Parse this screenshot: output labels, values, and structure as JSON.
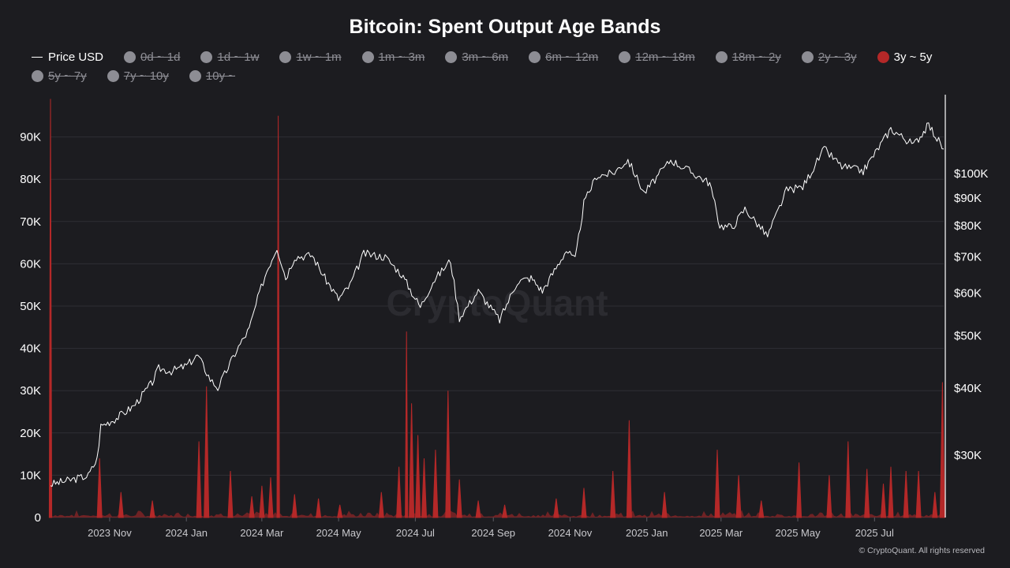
{
  "title": "Bitcoin: Spent Output Age Bands",
  "credit": "© CryptoQuant. All rights reserved",
  "watermark": "CryptoQuant",
  "colors": {
    "background": "#1c1c20",
    "price_line": "#ffffff",
    "series": "#b42828",
    "disabled": "#8d8d94"
  },
  "legend": [
    {
      "label": "Price USD",
      "type": "line",
      "color": "#ffffff",
      "enabled": true
    },
    {
      "label": "0d ~ 1d",
      "type": "dot",
      "color": "#8d8d94",
      "enabled": false
    },
    {
      "label": "1d ~ 1w",
      "type": "dot",
      "color": "#8d8d94",
      "enabled": false
    },
    {
      "label": "1w ~ 1m",
      "type": "dot",
      "color": "#8d8d94",
      "enabled": false
    },
    {
      "label": "1m ~ 3m",
      "type": "dot",
      "color": "#8d8d94",
      "enabled": false
    },
    {
      "label": "3m ~ 6m",
      "type": "dot",
      "color": "#8d8d94",
      "enabled": false
    },
    {
      "label": "6m ~ 12m",
      "type": "dot",
      "color": "#8d8d94",
      "enabled": false
    },
    {
      "label": "12m ~ 18m",
      "type": "dot",
      "color": "#8d8d94",
      "enabled": false
    },
    {
      "label": "18m ~ 2y",
      "type": "dot",
      "color": "#8d8d94",
      "enabled": false
    },
    {
      "label": "2y ~ 3y",
      "type": "dot",
      "color": "#8d8d94",
      "enabled": false
    },
    {
      "label": "3y ~ 5y",
      "type": "dot",
      "color": "#b42828",
      "enabled": true
    },
    {
      "label": "5y ~ 7y",
      "type": "dot",
      "color": "#8d8d94",
      "enabled": false
    },
    {
      "label": "7y ~ 10y",
      "type": "dot",
      "color": "#8d8d94",
      "enabled": false
    },
    {
      "label": "10y ~",
      "type": "dot",
      "color": "#8d8d94",
      "enabled": false
    }
  ],
  "chart_data": {
    "type": "area",
    "x_ticks": [
      "2023 Nov",
      "2024 Jan",
      "2024 Mar",
      "2024 May",
      "2024 Jul",
      "2024 Sep",
      "2024 Nov",
      "2025 Jan",
      "2025 Mar",
      "2025 May",
      "2025 Jul"
    ],
    "x_range": [
      "2023-09-15",
      "2025-08-25"
    ],
    "left_axis": {
      "ticks": [
        "0",
        "10K",
        "20K",
        "30K",
        "40K",
        "50K",
        "60K",
        "70K",
        "80K",
        "90K"
      ],
      "min": 0,
      "max": 100000
    },
    "right_axis": {
      "scale": "log",
      "ticks": [
        {
          "label": "$30K",
          "value": 30000
        },
        {
          "label": "$40K",
          "value": 40000
        },
        {
          "label": "$50K",
          "value": 50000
        },
        {
          "label": "$60K",
          "value": 60000
        },
        {
          "label": "$70K",
          "value": 70000
        },
        {
          "label": "$80K",
          "value": 80000
        },
        {
          "label": "$90K",
          "value": 90000
        },
        {
          "label": "$100K",
          "value": 100000
        }
      ],
      "min": 23000,
      "max": 140000
    },
    "grid": true,
    "series": [
      {
        "name": "Price USD",
        "axis": "right",
        "style": "line",
        "points": [
          [
            "2023-09-15",
            26500
          ],
          [
            "2023-10-01",
            27000
          ],
          [
            "2023-10-15",
            27500
          ],
          [
            "2023-10-22",
            29500
          ],
          [
            "2023-10-25",
            34000
          ],
          [
            "2023-11-05",
            35000
          ],
          [
            "2023-11-20",
            37000
          ],
          [
            "2023-12-05",
            41000
          ],
          [
            "2023-12-10",
            43500
          ],
          [
            "2023-12-20",
            43000
          ],
          [
            "2024-01-01",
            44000
          ],
          [
            "2024-01-10",
            46000
          ],
          [
            "2024-01-20",
            41500
          ],
          [
            "2024-01-26",
            40000
          ],
          [
            "2024-02-10",
            47000
          ],
          [
            "2024-02-20",
            51500
          ],
          [
            "2024-02-28",
            60000
          ],
          [
            "2024-03-05",
            66000
          ],
          [
            "2024-03-13",
            73000
          ],
          [
            "2024-03-20",
            64000
          ],
          [
            "2024-03-27",
            70000
          ],
          [
            "2024-04-10",
            70500
          ],
          [
            "2024-04-20",
            64000
          ],
          [
            "2024-05-01",
            58500
          ],
          [
            "2024-05-10",
            62000
          ],
          [
            "2024-05-21",
            71000
          ],
          [
            "2024-06-07",
            70000
          ],
          [
            "2024-06-20",
            65000
          ],
          [
            "2024-07-05",
            56500
          ],
          [
            "2024-07-15",
            63000
          ],
          [
            "2024-07-29",
            69000
          ],
          [
            "2024-08-05",
            54000
          ],
          [
            "2024-08-20",
            60500
          ],
          [
            "2024-09-06",
            53500
          ],
          [
            "2024-09-20",
            63000
          ],
          [
            "2024-10-01",
            64000
          ],
          [
            "2024-10-10",
            60500
          ],
          [
            "2024-10-29",
            72000
          ],
          [
            "2024-11-05",
            69000
          ],
          [
            "2024-11-12",
            88000
          ],
          [
            "2024-11-22",
            99000
          ],
          [
            "2024-12-05",
            100000
          ],
          [
            "2024-12-17",
            106000
          ],
          [
            "2024-12-30",
            92000
          ],
          [
            "2025-01-20",
            106000
          ],
          [
            "2025-02-01",
            102000
          ],
          [
            "2025-02-20",
            96000
          ],
          [
            "2025-02-28",
            80000
          ],
          [
            "2025-03-10",
            79500
          ],
          [
            "2025-03-20",
            86000
          ],
          [
            "2025-04-07",
            76500
          ],
          [
            "2025-04-22",
            93000
          ],
          [
            "2025-05-05",
            94500
          ],
          [
            "2025-05-22",
            111000
          ],
          [
            "2025-06-05",
            103000
          ],
          [
            "2025-06-22",
            101000
          ],
          [
            "2025-07-14",
            121000
          ],
          [
            "2025-08-01",
            113000
          ],
          [
            "2025-08-13",
            123000
          ],
          [
            "2025-08-25",
            111000
          ]
        ]
      },
      {
        "name": "3y ~ 5y",
        "axis": "left",
        "style": "area",
        "spikes": [
          [
            "2023-09-15",
            99000
          ],
          [
            "2023-10-24",
            14000
          ],
          [
            "2023-11-10",
            6000
          ],
          [
            "2023-12-05",
            4000
          ],
          [
            "2024-01-11",
            18000
          ],
          [
            "2024-01-17",
            31000
          ],
          [
            "2024-02-05",
            11000
          ],
          [
            "2024-02-22",
            5000
          ],
          [
            "2024-03-01",
            7500
          ],
          [
            "2024-03-08",
            9500
          ],
          [
            "2024-03-14",
            95000
          ],
          [
            "2024-03-27",
            5500
          ],
          [
            "2024-04-15",
            4500
          ],
          [
            "2024-05-02",
            3000
          ],
          [
            "2024-06-04",
            6000
          ],
          [
            "2024-06-18",
            12000
          ],
          [
            "2024-06-24",
            44000
          ],
          [
            "2024-06-28",
            27000
          ],
          [
            "2024-07-03",
            19500
          ],
          [
            "2024-07-08",
            14000
          ],
          [
            "2024-07-17",
            16000
          ],
          [
            "2024-07-27",
            30000
          ],
          [
            "2024-08-05",
            9000
          ],
          [
            "2024-08-20",
            4000
          ],
          [
            "2024-09-10",
            3000
          ],
          [
            "2024-10-21",
            4500
          ],
          [
            "2024-11-12",
            7000
          ],
          [
            "2024-12-05",
            11000
          ],
          [
            "2024-12-18",
            23000
          ],
          [
            "2025-01-15",
            6000
          ],
          [
            "2025-02-26",
            16000
          ],
          [
            "2025-03-15",
            10000
          ],
          [
            "2025-04-02",
            4000
          ],
          [
            "2025-05-02",
            13000
          ],
          [
            "2025-05-26",
            10000
          ],
          [
            "2025-06-10",
            18000
          ],
          [
            "2025-06-25",
            11500
          ],
          [
            "2025-07-08",
            8000
          ],
          [
            "2025-07-14",
            12000
          ],
          [
            "2025-07-26",
            11000
          ],
          [
            "2025-08-05",
            11000
          ],
          [
            "2025-08-18",
            6000
          ],
          [
            "2025-08-24",
            32000
          ]
        ]
      }
    ]
  }
}
